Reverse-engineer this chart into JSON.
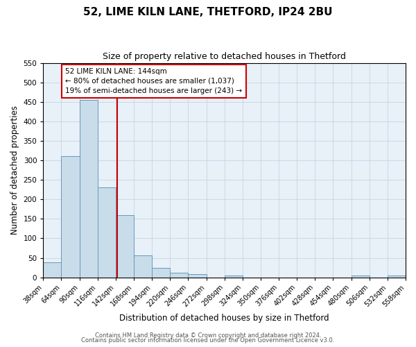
{
  "title": "52, LIME KILN LANE, THETFORD, IP24 2BU",
  "subtitle": "Size of property relative to detached houses in Thetford",
  "xlabel": "Distribution of detached houses by size in Thetford",
  "ylabel": "Number of detached properties",
  "bin_edges": [
    38,
    64,
    90,
    116,
    142,
    168,
    194,
    220,
    246,
    272,
    298,
    324,
    350,
    376,
    402,
    428,
    454,
    480,
    506,
    532,
    558
  ],
  "bar_heights": [
    38,
    310,
    455,
    230,
    160,
    57,
    25,
    12,
    9,
    0,
    5,
    0,
    0,
    0,
    0,
    0,
    0,
    5,
    0,
    5
  ],
  "bar_color": "#c9dcea",
  "bar_edge_color": "#6699bb",
  "reference_line_x": 144,
  "reference_line_color": "#cc0000",
  "annotation_text": "52 LIME KILN LANE: 144sqm\n← 80% of detached houses are smaller (1,037)\n19% of semi-detached houses are larger (243) →",
  "annotation_box_color": "#cc0000",
  "ylim": [
    0,
    550
  ],
  "xlim": [
    38,
    558
  ],
  "footer_line1": "Contains HM Land Registry data © Crown copyright and database right 2024.",
  "footer_line2": "Contains public sector information licensed under the Open Government Licence v3.0.",
  "title_fontsize": 11,
  "subtitle_fontsize": 9,
  "tick_label_fontsize": 7,
  "ylabel_fontsize": 8.5,
  "xlabel_fontsize": 8.5,
  "footer_fontsize": 6,
  "grid_color": "#c5d5e5",
  "bg_color": "#e8f0f8"
}
